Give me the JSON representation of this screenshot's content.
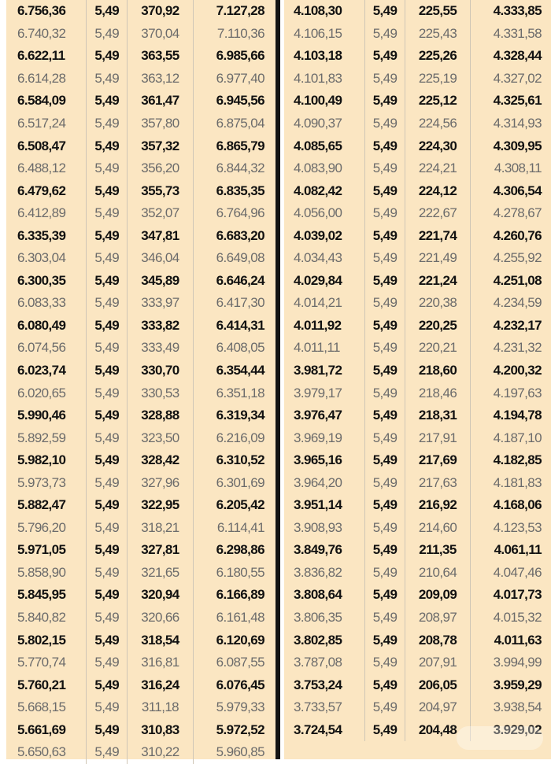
{
  "left_rows": [
    [
      "6.756,36",
      "5,49",
      "370,92",
      "7.127,28"
    ],
    [
      "6.740,32",
      "5,49",
      "370,04",
      "7.110,36"
    ],
    [
      "6.622,11",
      "5,49",
      "363,55",
      "6.985,66"
    ],
    [
      "6.614,28",
      "5,49",
      "363,12",
      "6.977,40"
    ],
    [
      "6.584,09",
      "5,49",
      "361,47",
      "6.945,56"
    ],
    [
      "6.517,24",
      "5,49",
      "357,80",
      "6.875,04"
    ],
    [
      "6.508,47",
      "5,49",
      "357,32",
      "6.865,79"
    ],
    [
      "6.488,12",
      "5,49",
      "356,20",
      "6.844,32"
    ],
    [
      "6.479,62",
      "5,49",
      "355,73",
      "6.835,35"
    ],
    [
      "6.412,89",
      "5,49",
      "352,07",
      "6.764,96"
    ],
    [
      "6.335,39",
      "5,49",
      "347,81",
      "6.683,20"
    ],
    [
      "6.303,04",
      "5,49",
      "346,04",
      "6.649,08"
    ],
    [
      "6.300,35",
      "5,49",
      "345,89",
      "6.646,24"
    ],
    [
      "6.083,33",
      "5,49",
      "333,97",
      "6.417,30"
    ],
    [
      "6.080,49",
      "5,49",
      "333,82",
      "6.414,31"
    ],
    [
      "6.074,56",
      "5,49",
      "333,49",
      "6.408,05"
    ],
    [
      "6.023,74",
      "5,49",
      "330,70",
      "6.354,44"
    ],
    [
      "6.020,65",
      "5,49",
      "330,53",
      "6.351,18"
    ],
    [
      "5.990,46",
      "5,49",
      "328,88",
      "6.319,34"
    ],
    [
      "5.892,59",
      "5,49",
      "323,50",
      "6.216,09"
    ],
    [
      "5.982,10",
      "5,49",
      "328,42",
      "6.310,52"
    ],
    [
      "5.973,73",
      "5,49",
      "327,96",
      "6.301,69"
    ],
    [
      "5.882,47",
      "5,49",
      "322,95",
      "6.205,42"
    ],
    [
      "5.796,20",
      "5,49",
      "318,21",
      "6.114,41"
    ],
    [
      "5.971,05",
      "5,49",
      "327,81",
      "6.298,86"
    ],
    [
      "5.858,90",
      "5,49",
      "321,65",
      "6.180,55"
    ],
    [
      "5.845,95",
      "5,49",
      "320,94",
      "6.166,89"
    ],
    [
      "5.840,82",
      "5,49",
      "320,66",
      "6.161,48"
    ],
    [
      "5.802,15",
      "5,49",
      "318,54",
      "6.120,69"
    ],
    [
      "5.770,74",
      "5,49",
      "316,81",
      "6.087,55"
    ],
    [
      "5.760,21",
      "5,49",
      "316,24",
      "6.076,45"
    ],
    [
      "5.668,15",
      "5,49",
      "311,18",
      "5.979,33"
    ],
    [
      "5.661,69",
      "5,49",
      "310,83",
      "5.972,52"
    ],
    [
      "5.650,63",
      "5,49",
      "310,22",
      "5.960,85"
    ]
  ],
  "right_rows": [
    [
      "4.108,30",
      "5,49",
      "225,55",
      "4.333,85"
    ],
    [
      "4.106,15",
      "5,49",
      "225,43",
      "4.331,58"
    ],
    [
      "4.103,18",
      "5,49",
      "225,26",
      "4.328,44"
    ],
    [
      "4.101,83",
      "5,49",
      "225,19",
      "4.327,02"
    ],
    [
      "4.100,49",
      "5,49",
      "225,12",
      "4.325,61"
    ],
    [
      "4.090,37",
      "5,49",
      "224,56",
      "4.314,93"
    ],
    [
      "4.085,65",
      "5,49",
      "224,30",
      "4.309,95"
    ],
    [
      "4.083,90",
      "5,49",
      "224,21",
      "4.308,11"
    ],
    [
      "4.082,42",
      "5,49",
      "224,12",
      "4.306,54"
    ],
    [
      "4.056,00",
      "5,49",
      "222,67",
      "4.278,67"
    ],
    [
      "4.039,02",
      "5,49",
      "221,74",
      "4.260,76"
    ],
    [
      "4.034,43",
      "5,49",
      "221,49",
      "4.255,92"
    ],
    [
      "4.029,84",
      "5,49",
      "221,24",
      "4.251,08"
    ],
    [
      "4.014,21",
      "5,49",
      "220,38",
      "4.234,59"
    ],
    [
      "4.011,92",
      "5,49",
      "220,25",
      "4.232,17"
    ],
    [
      "4.011,11",
      "5,49",
      "220,21",
      "4.231,32"
    ],
    [
      "3.981,72",
      "5,49",
      "218,60",
      "4.200,32"
    ],
    [
      "3.979,17",
      "5,49",
      "218,46",
      "4.197,63"
    ],
    [
      "3.976,47",
      "5,49",
      "218,31",
      "4.194,78"
    ],
    [
      "3.969,19",
      "5,49",
      "217,91",
      "4.187,10"
    ],
    [
      "3.965,16",
      "5,49",
      "217,69",
      "4.182,85"
    ],
    [
      "3.964,20",
      "5,49",
      "217,63",
      "4.181,83"
    ],
    [
      "3.951,14",
      "5,49",
      "216,92",
      "4.168,06"
    ],
    [
      "3.908,93",
      "5,49",
      "214,60",
      "4.123,53"
    ],
    [
      "3.849,76",
      "5,49",
      "211,35",
      "4.061,11"
    ],
    [
      "3.836,82",
      "5,49",
      "210,64",
      "4.047,46"
    ],
    [
      "3.808,64",
      "5,49",
      "209,09",
      "4.017,73"
    ],
    [
      "3.806,35",
      "5,49",
      "208,97",
      "4.015,32"
    ],
    [
      "3.802,85",
      "5,49",
      "208,78",
      "4.011,63"
    ],
    [
      "3.787,08",
      "5,49",
      "207,91",
      "3.994,99"
    ],
    [
      "3.753,24",
      "5,49",
      "206,05",
      "3.959,29"
    ],
    [
      "3.733,57",
      "5,49",
      "204,97",
      "3.938,54"
    ],
    [
      "3.724,54",
      "5,49",
      "204,48",
      "3.929,02"
    ]
  ],
  "colors": {
    "background": "#fbe6c2",
    "bold_text": "#111111",
    "light_text": "#6b6b6b",
    "divider": "#141414"
  }
}
